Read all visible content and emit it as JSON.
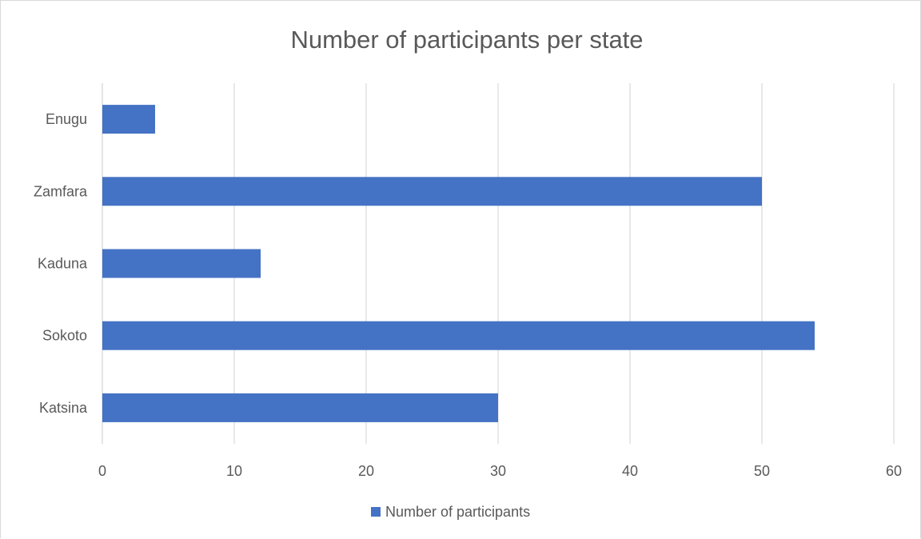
{
  "chart_data": {
    "type": "bar",
    "orientation": "horizontal",
    "title": "Number of participants per state",
    "categories": [
      "Enugu",
      "Zamfara",
      "Kaduna",
      "Sokoto",
      "Katsina"
    ],
    "series": [
      {
        "name": "Number of participants",
        "values": [
          4,
          50,
          12,
          54,
          30
        ],
        "color": "#4472c4"
      }
    ],
    "xlim": [
      0,
      60
    ],
    "x_ticks": [
      0,
      10,
      20,
      30,
      40,
      50,
      60
    ],
    "xlabel": "",
    "ylabel": "",
    "grid": true,
    "legend": "bottom"
  }
}
